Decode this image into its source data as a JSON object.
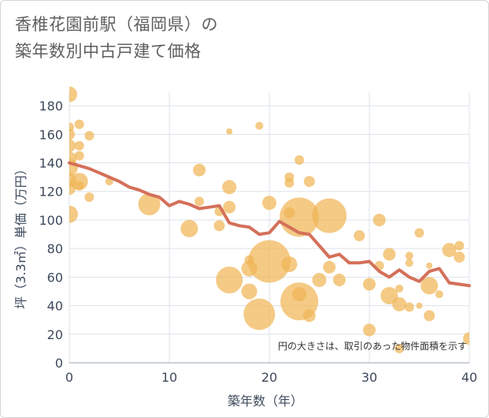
{
  "chart_data": {
    "type": "scatter",
    "title_lines": [
      "香椎花園前駅（福岡県）の",
      "築年数別中古戸建て価格"
    ],
    "xlabel": "築年数（年）",
    "ylabel": "坪（3.3㎡）単価（万円）",
    "xlim": [
      0,
      40
    ],
    "ylim": [
      0,
      190
    ],
    "xticks": [
      0,
      10,
      20,
      30,
      40
    ],
    "yticks": [
      0,
      20,
      40,
      60,
      80,
      100,
      120,
      140,
      160,
      180
    ],
    "grid": true,
    "note": "円の大きさは、取引のあった物件面積を示す",
    "colors": {
      "bubble": "#f0b556",
      "line": "#d4705a",
      "grid": "#dde3ea"
    },
    "bubbles": [
      {
        "x": 0,
        "y": 188,
        "r": 10
      },
      {
        "x": 0,
        "y": 165,
        "r": 6
      },
      {
        "x": 0,
        "y": 160,
        "r": 7
      },
      {
        "x": 0,
        "y": 152,
        "r": 8
      },
      {
        "x": 0,
        "y": 143,
        "r": 9
      },
      {
        "x": 0,
        "y": 137,
        "r": 11
      },
      {
        "x": 0,
        "y": 128,
        "r": 9
      },
      {
        "x": 0,
        "y": 122,
        "r": 8
      },
      {
        "x": 0,
        "y": 104,
        "r": 11
      },
      {
        "x": 1,
        "y": 167,
        "r": 6
      },
      {
        "x": 1,
        "y": 152,
        "r": 6
      },
      {
        "x": 1,
        "y": 145,
        "r": 6
      },
      {
        "x": 1,
        "y": 127,
        "r": 11
      },
      {
        "x": 1,
        "y": 124,
        "r": 6
      },
      {
        "x": 2,
        "y": 159,
        "r": 6
      },
      {
        "x": 2,
        "y": 116,
        "r": 6
      },
      {
        "x": 4,
        "y": 127,
        "r": 5
      },
      {
        "x": 8,
        "y": 111,
        "r": 14
      },
      {
        "x": 12,
        "y": 94,
        "r": 11
      },
      {
        "x": 13,
        "y": 135,
        "r": 8
      },
      {
        "x": 13,
        "y": 113,
        "r": 6
      },
      {
        "x": 15,
        "y": 106,
        "r": 6
      },
      {
        "x": 15,
        "y": 96,
        "r": 7
      },
      {
        "x": 16,
        "y": 162,
        "r": 4
      },
      {
        "x": 16,
        "y": 123,
        "r": 9
      },
      {
        "x": 16,
        "y": 109,
        "r": 8
      },
      {
        "x": 16,
        "y": 58,
        "r": 17
      },
      {
        "x": 18,
        "y": 66,
        "r": 10
      },
      {
        "x": 18,
        "y": 50,
        "r": 10
      },
      {
        "x": 18,
        "y": 72,
        "r": 6
      },
      {
        "x": 19,
        "y": 166,
        "r": 5
      },
      {
        "x": 19,
        "y": 34,
        "r": 20
      },
      {
        "x": 20,
        "y": 71,
        "r": 27
      },
      {
        "x": 20,
        "y": 112,
        "r": 9
      },
      {
        "x": 22,
        "y": 130,
        "r": 6
      },
      {
        "x": 22,
        "y": 126,
        "r": 6
      },
      {
        "x": 22,
        "y": 105,
        "r": 7
      },
      {
        "x": 22,
        "y": 69,
        "r": 10
      },
      {
        "x": 23,
        "y": 142,
        "r": 6
      },
      {
        "x": 23,
        "y": 102,
        "r": 25
      },
      {
        "x": 23,
        "y": 43,
        "r": 24
      },
      {
        "x": 23,
        "y": 48,
        "r": 9
      },
      {
        "x": 24,
        "y": 127,
        "r": 7
      },
      {
        "x": 24,
        "y": 33,
        "r": 8
      },
      {
        "x": 25,
        "y": 58,
        "r": 9
      },
      {
        "x": 26,
        "y": 103,
        "r": 22
      },
      {
        "x": 26,
        "y": 67,
        "r": 8
      },
      {
        "x": 27,
        "y": 58,
        "r": 8
      },
      {
        "x": 29,
        "y": 89,
        "r": 7
      },
      {
        "x": 30,
        "y": 55,
        "r": 8
      },
      {
        "x": 30,
        "y": 23,
        "r": 8
      },
      {
        "x": 31,
        "y": 100,
        "r": 8
      },
      {
        "x": 31,
        "y": 68,
        "r": 6
      },
      {
        "x": 32,
        "y": 76,
        "r": 8
      },
      {
        "x": 32,
        "y": 47,
        "r": 11
      },
      {
        "x": 33,
        "y": 52,
        "r": 5
      },
      {
        "x": 33,
        "y": 41,
        "r": 9
      },
      {
        "x": 33,
        "y": 10,
        "r": 6
      },
      {
        "x": 34,
        "y": 75,
        "r": 5
      },
      {
        "x": 34,
        "y": 70,
        "r": 5
      },
      {
        "x": 34,
        "y": 39,
        "r": 6
      },
      {
        "x": 35,
        "y": 91,
        "r": 6
      },
      {
        "x": 35,
        "y": 40,
        "r": 4
      },
      {
        "x": 36,
        "y": 68,
        "r": 4
      },
      {
        "x": 36,
        "y": 54,
        "r": 11
      },
      {
        "x": 36,
        "y": 33,
        "r": 7
      },
      {
        "x": 37,
        "y": 48,
        "r": 5
      },
      {
        "x": 38,
        "y": 79,
        "r": 9
      },
      {
        "x": 39,
        "y": 82,
        "r": 6
      },
      {
        "x": 39,
        "y": 74,
        "r": 7
      },
      {
        "x": 40,
        "y": 17,
        "r": 8
      }
    ],
    "trend": {
      "x": [
        0,
        1,
        2,
        3,
        4,
        5,
        6,
        7,
        8,
        9,
        10,
        11,
        12,
        13,
        14,
        15,
        16,
        17,
        18,
        19,
        20,
        21,
        22,
        23,
        24,
        25,
        26,
        27,
        28,
        29,
        30,
        31,
        32,
        33,
        34,
        35,
        36,
        37,
        38,
        39,
        40
      ],
      "y": [
        140,
        138,
        136,
        133,
        130,
        127,
        123,
        121,
        118,
        116,
        110,
        113,
        111,
        108,
        109,
        110,
        98,
        96,
        95,
        90,
        91,
        99,
        95,
        91,
        90,
        82,
        74,
        76,
        70,
        70,
        71,
        64,
        60,
        65,
        60,
        57,
        64,
        66,
        56,
        55,
        54
      ]
    }
  }
}
